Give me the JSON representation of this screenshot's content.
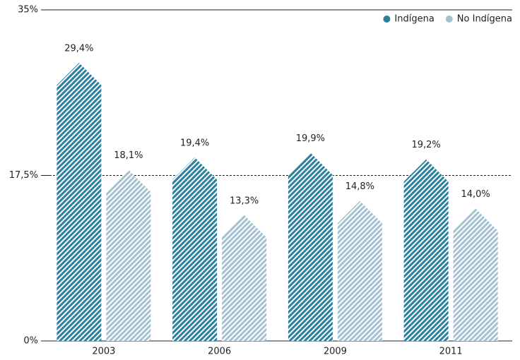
{
  "chart_data": {
    "type": "bar",
    "categories": [
      "2003",
      "2006",
      "2009",
      "2011"
    ],
    "series": [
      {
        "name": "Indígena",
        "color": "#2b7f9f",
        "values": [
          29.4,
          19.4,
          19.9,
          19.2
        ],
        "value_labels": [
          "29,4%",
          "19,4%",
          "19,9%",
          "19,2%"
        ]
      },
      {
        "name": "No Indígena",
        "color": "#a4c1d2",
        "values": [
          18.1,
          13.3,
          14.8,
          14.0
        ],
        "value_labels": [
          "18,1%",
          "13,3%",
          "14,8%",
          "14,0%"
        ]
      }
    ],
    "ylim": [
      0,
      35
    ],
    "yticks": [
      {
        "value": 0,
        "label": "0%"
      },
      {
        "value": 17.5,
        "label": "17,5%"
      },
      {
        "value": 35,
        "label": "35%"
      }
    ],
    "grid": true,
    "legend": "top-right"
  }
}
